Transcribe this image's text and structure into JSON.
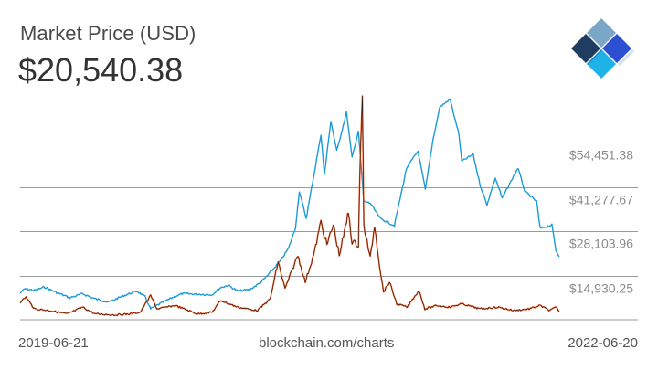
{
  "header": {
    "title": "Market Price (USD)",
    "current_price": "$20,540.38"
  },
  "footer": {
    "start_date": "2019-06-21",
    "source": "blockchain.com/charts",
    "end_date": "2022-06-20"
  },
  "logo": {
    "icon": "blockchain-logo-icon",
    "colors": [
      "#1f3c61",
      "#7aa7c7",
      "#2d4fd1",
      "#1fb2e6",
      "#cfe1ee"
    ]
  },
  "chart_data": {
    "type": "line",
    "title": "Market Price (USD)",
    "x_range": [
      "2019-06-21",
      "2022-06-20"
    ],
    "yticks": [
      14930.25,
      28103.96,
      41277.67,
      54451.38
    ],
    "ytick_labels": [
      "$14,930.25",
      "$28,103.96",
      "$41,277.67",
      "$54,451.38"
    ],
    "ylim": [
      1756.54,
      67625.09
    ],
    "grid": true,
    "series": [
      {
        "color": "#1a9bd7",
        "points": [
          [
            "2019-06-21",
            9700
          ],
          [
            "2019-07-01",
            11000
          ],
          [
            "2019-07-20",
            10500
          ],
          [
            "2019-08-10",
            11500
          ],
          [
            "2019-09-01",
            10000
          ],
          [
            "2019-09-30",
            8300
          ],
          [
            "2019-10-26",
            9500
          ],
          [
            "2019-11-20",
            8000
          ],
          [
            "2019-12-18",
            7000
          ],
          [
            "2020-01-15",
            8800
          ],
          [
            "2020-02-13",
            10300
          ],
          [
            "2020-03-01",
            8600
          ],
          [
            "2020-03-12",
            5000
          ],
          [
            "2020-03-31",
            6500
          ],
          [
            "2020-04-30",
            8700
          ],
          [
            "2020-05-15",
            9500
          ],
          [
            "2020-06-15",
            9400
          ],
          [
            "2020-07-15",
            9200
          ],
          [
            "2020-07-31",
            11300
          ],
          [
            "2020-08-17",
            12000
          ],
          [
            "2020-09-05",
            10300
          ],
          [
            "2020-09-30",
            10800
          ],
          [
            "2020-10-21",
            12800
          ],
          [
            "2020-11-05",
            15000
          ],
          [
            "2020-11-30",
            19200
          ],
          [
            "2020-12-17",
            23000
          ],
          [
            "2020-12-31",
            29000
          ],
          [
            "2021-01-08",
            40000
          ],
          [
            "2021-01-22",
            32000
          ],
          [
            "2021-02-08",
            46000
          ],
          [
            "2021-02-21",
            57000
          ],
          [
            "2021-02-28",
            45000
          ],
          [
            "2021-03-13",
            61000
          ],
          [
            "2021-03-25",
            52000
          ],
          [
            "2021-04-14",
            63500
          ],
          [
            "2021-04-25",
            50000
          ],
          [
            "2021-05-08",
            58000
          ],
          [
            "2021-05-19",
            37000
          ],
          [
            "2021-06-01",
            36500
          ],
          [
            "2021-06-21",
            32000
          ],
          [
            "2021-07-20",
            29800
          ],
          [
            "2021-08-14",
            47000
          ],
          [
            "2021-09-06",
            52000
          ],
          [
            "2021-09-21",
            40500
          ],
          [
            "2021-10-06",
            55000
          ],
          [
            "2021-10-20",
            65000
          ],
          [
            "2021-11-10",
            67500
          ],
          [
            "2021-11-28",
            57000
          ],
          [
            "2021-12-04",
            49000
          ],
          [
            "2021-12-27",
            51000
          ],
          [
            "2022-01-10",
            42000
          ],
          [
            "2022-01-24",
            36000
          ],
          [
            "2022-02-10",
            44000
          ],
          [
            "2022-02-24",
            38000
          ],
          [
            "2022-03-28",
            47000
          ],
          [
            "2022-04-11",
            40000
          ],
          [
            "2022-05-05",
            37000
          ],
          [
            "2022-05-12",
            29000
          ],
          [
            "2022-06-05",
            30000
          ],
          [
            "2022-06-13",
            22500
          ],
          [
            "2022-06-20",
            20540
          ]
        ]
      },
      {
        "color": "#ff5a1f",
        "points": [
          [
            "2019-06-21",
            7000
          ],
          [
            "2019-07-03",
            8500
          ],
          [
            "2019-07-20",
            5000
          ],
          [
            "2019-08-20",
            4500
          ],
          [
            "2019-09-25",
            3500
          ],
          [
            "2019-10-26",
            5500
          ],
          [
            "2019-11-20",
            3500
          ],
          [
            "2019-12-31",
            3200
          ],
          [
            "2020-01-31",
            3500
          ],
          [
            "2020-02-20",
            4000
          ],
          [
            "2020-03-12",
            9000
          ],
          [
            "2020-03-25",
            5000
          ],
          [
            "2020-05-01",
            6000
          ],
          [
            "2020-06-15",
            3500
          ],
          [
            "2020-07-15",
            4000
          ],
          [
            "2020-08-01",
            7500
          ],
          [
            "2020-09-05",
            5500
          ],
          [
            "2020-10-15",
            4500
          ],
          [
            "2020-11-10",
            8000
          ],
          [
            "2020-11-26",
            19000
          ],
          [
            "2020-12-10",
            11000
          ],
          [
            "2021-01-05",
            21000
          ],
          [
            "2021-01-20",
            13000
          ],
          [
            "2021-02-08",
            22000
          ],
          [
            "2021-02-21",
            31000
          ],
          [
            "2021-03-05",
            24000
          ],
          [
            "2021-03-18",
            30000
          ],
          [
            "2021-03-30",
            21000
          ],
          [
            "2021-04-10",
            28000
          ],
          [
            "2021-04-18",
            34000
          ],
          [
            "2021-04-25",
            25000
          ],
          [
            "2021-05-08",
            24000
          ],
          [
            "2021-05-12",
            52000
          ],
          [
            "2021-05-16",
            67000
          ],
          [
            "2021-05-19",
            30000
          ],
          [
            "2021-06-01",
            20000
          ],
          [
            "2021-06-10",
            30000
          ],
          [
            "2021-06-20",
            18000
          ],
          [
            "2021-06-28",
            10000
          ],
          [
            "2021-07-10",
            13000
          ],
          [
            "2021-07-25",
            6500
          ],
          [
            "2021-08-15",
            5500
          ],
          [
            "2021-09-08",
            10500
          ],
          [
            "2021-09-20",
            5000
          ],
          [
            "2021-10-15",
            6000
          ],
          [
            "2021-11-10",
            5500
          ],
          [
            "2021-12-04",
            6500
          ],
          [
            "2022-01-10",
            5000
          ],
          [
            "2022-02-15",
            5500
          ],
          [
            "2022-03-20",
            4500
          ],
          [
            "2022-04-20",
            5000
          ],
          [
            "2022-05-12",
            6000
          ],
          [
            "2022-06-01",
            4500
          ],
          [
            "2022-06-13",
            5500
          ],
          [
            "2022-06-20",
            4000
          ]
        ]
      }
    ]
  }
}
